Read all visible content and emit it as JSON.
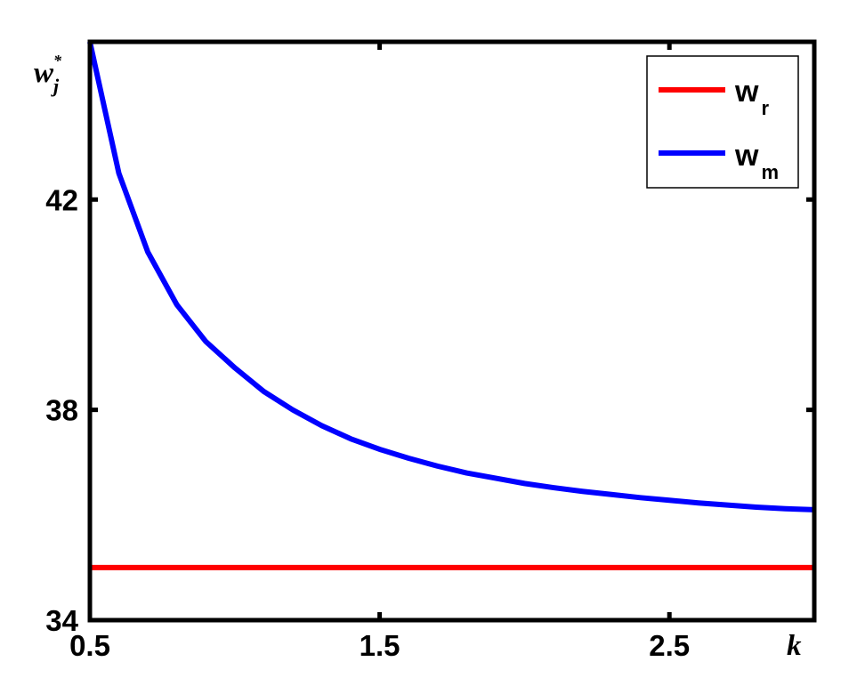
{
  "chart_data": {
    "type": "line",
    "xlabel": "k",
    "ylabel": {
      "base": "w",
      "sub": "j",
      "sup": "*"
    },
    "xlim": [
      0.5,
      3.0
    ],
    "ylim": [
      34,
      45
    ],
    "xticks": [
      0.5,
      1.5,
      2.5
    ],
    "xtick_labels": [
      "0.5",
      "1.5",
      "2.5"
    ],
    "yticks": [
      34,
      38,
      42
    ],
    "ytick_labels": [
      "34",
      "38",
      "42"
    ],
    "grid": false,
    "legend_position": "top-right",
    "series": [
      {
        "name": "w_r",
        "legend_base": "w",
        "legend_sub": "r",
        "color": "#ff0000",
        "x": [
          0.5,
          3.0
        ],
        "y": [
          35.0,
          35.0
        ]
      },
      {
        "name": "w_m",
        "legend_base": "w",
        "legend_sub": "m",
        "color": "#0000ff",
        "x": [
          0.5,
          0.6,
          0.7,
          0.8,
          0.9,
          1.0,
          1.1,
          1.2,
          1.3,
          1.4,
          1.5,
          1.6,
          1.7,
          1.8,
          1.9,
          2.0,
          2.1,
          2.2,
          2.3,
          2.4,
          2.5,
          2.6,
          2.7,
          2.8,
          2.9,
          3.0
        ],
        "y": [
          45.0,
          42.5,
          41.0,
          40.0,
          39.3,
          38.8,
          38.35,
          38.0,
          37.7,
          37.45,
          37.25,
          37.08,
          36.93,
          36.8,
          36.7,
          36.6,
          36.52,
          36.45,
          36.39,
          36.33,
          36.28,
          36.23,
          36.19,
          36.15,
          36.12,
          36.1
        ]
      }
    ]
  }
}
